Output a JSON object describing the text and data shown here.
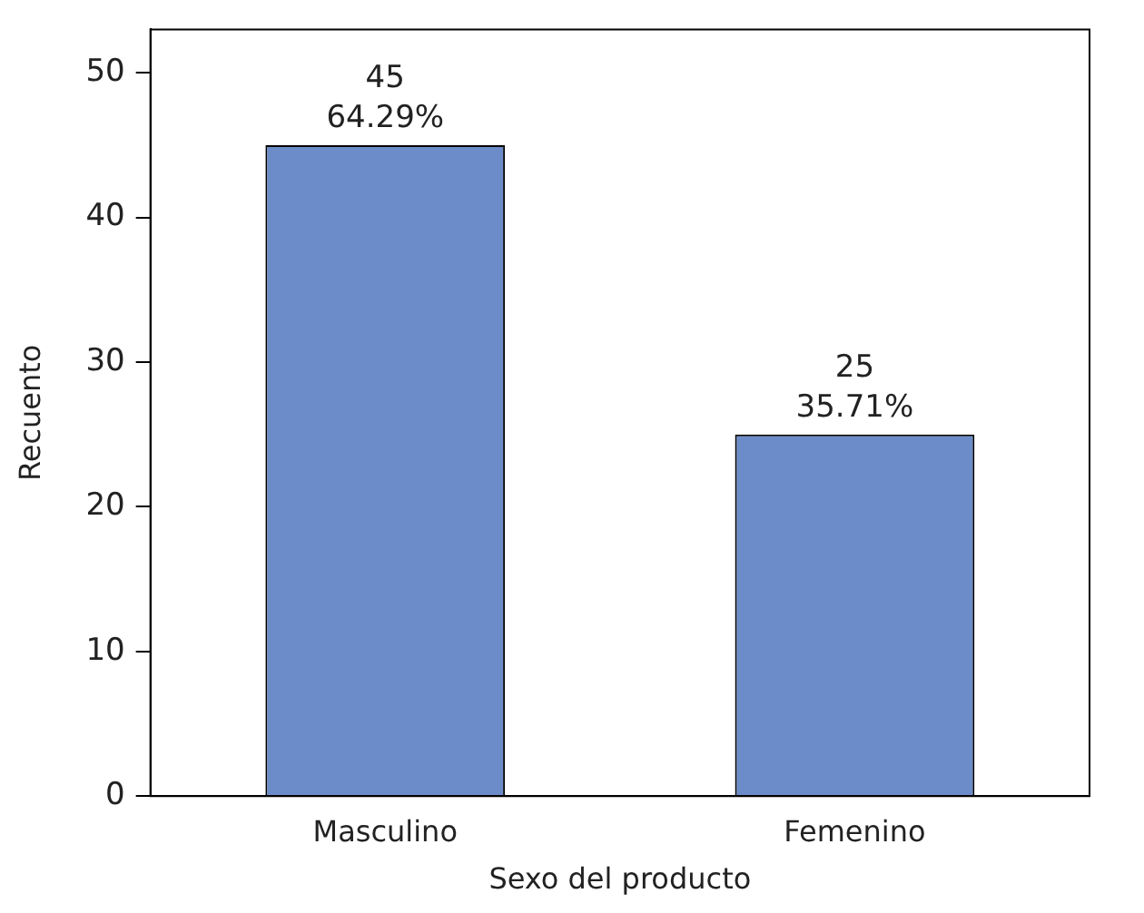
{
  "chart_data": {
    "type": "bar",
    "xlabel": "Sexo del producto",
    "ylabel": "Recuento",
    "categories": [
      "Masculino",
      "Femenino"
    ],
    "values": [
      45,
      25
    ],
    "value_labels": [
      "45\n64.29%",
      "25\n35.71%"
    ],
    "color": "#6b8cc8",
    "ylim": [
      0,
      53
    ],
    "yticks": [
      0,
      10,
      20,
      30,
      40,
      50
    ],
    "grid": false,
    "legend": false
  }
}
